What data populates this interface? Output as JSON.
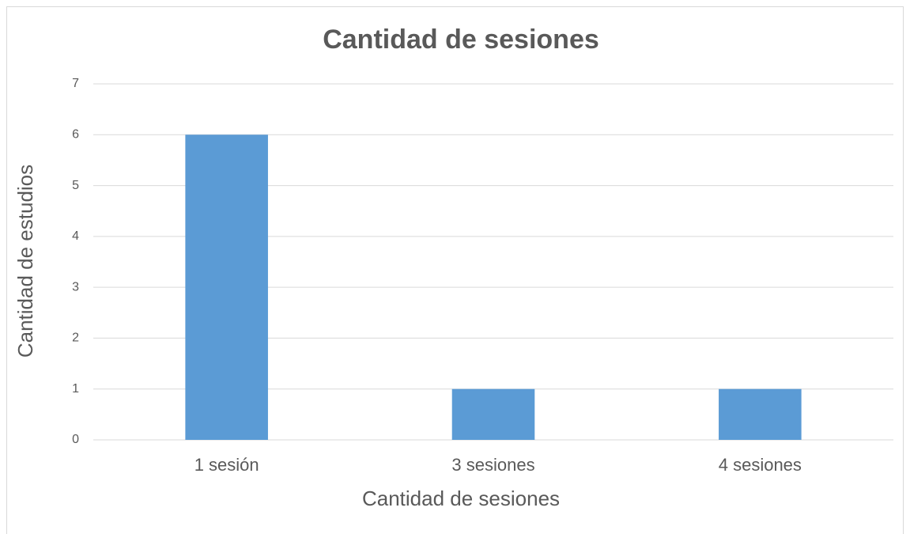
{
  "chart_data": {
    "type": "bar",
    "title": "Cantidad de sesiones",
    "x_label": "Cantidad de sesiones",
    "y_label": "Cantidad de estudios",
    "categories": [
      "1 sesión",
      "3 sesiones",
      "4 sesiones"
    ],
    "values": [
      6,
      1,
      1
    ],
    "color": "#5b9bd5",
    "ylim": [
      0,
      7
    ],
    "yticks": [
      0,
      1,
      2,
      3,
      4,
      5,
      6,
      7
    ],
    "grid": true
  }
}
